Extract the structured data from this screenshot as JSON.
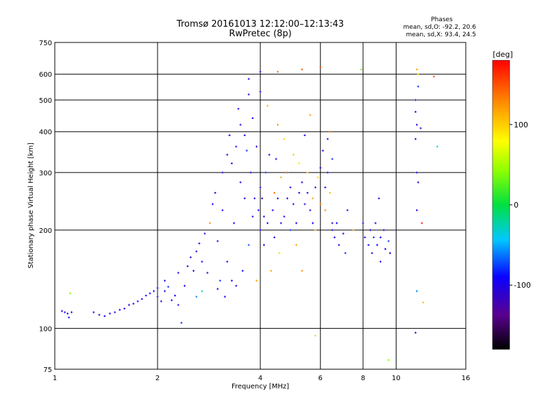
{
  "chart_data": {
    "type": "scatter",
    "title": "Tromsø 20161013 12:12:00–12:13:43",
    "subtitle": "RwPretec (8p)",
    "xlabel": "Frequency [MHz]",
    "ylabel": "Stationary phase Virtual Height [km]",
    "x_scale": "log",
    "y_scale": "log",
    "xlim": [
      1,
      16
    ],
    "ylim": [
      75,
      750
    ],
    "x_ticks": [
      "1",
      "2",
      "4",
      "6",
      "8",
      "10",
      "16"
    ],
    "x_tick_values": [
      1,
      2,
      4,
      6,
      8,
      10,
      16
    ],
    "y_ticks": [
      "75",
      "100",
      "200",
      "300",
      "400",
      "500",
      "600",
      "750"
    ],
    "y_tick_values": [
      75,
      100,
      200,
      300,
      400,
      500,
      600,
      750
    ],
    "grid": true,
    "info": {
      "heading": "Phases",
      "line_o": "mean, sd,O: -92.2, 20.6",
      "line_x": "mean, sd,X:  93.4, 24.5"
    },
    "colorbar": {
      "unit": "[deg]",
      "range": [
        -180,
        180
      ],
      "ticks": [
        "100",
        "0",
        "-100"
      ],
      "tick_values": [
        100,
        0,
        -100
      ],
      "colormap": "rainbow (black-purple-blue-cyan-green-yellow-orange-red)"
    },
    "points": [
      [
        1.05,
        113,
        -100
      ],
      [
        1.07,
        112,
        -100
      ],
      [
        1.09,
        111,
        -90
      ],
      [
        1.12,
        112,
        -100
      ],
      [
        1.1,
        108,
        -85
      ],
      [
        1.11,
        128,
        40
      ],
      [
        1.3,
        112,
        -100
      ],
      [
        1.35,
        110,
        -100
      ],
      [
        1.4,
        109,
        -95
      ],
      [
        1.45,
        111,
        -100
      ],
      [
        1.5,
        112,
        -100
      ],
      [
        1.55,
        114,
        -95
      ],
      [
        1.6,
        115,
        -100
      ],
      [
        1.65,
        118,
        -100
      ],
      [
        1.7,
        119,
        -100
      ],
      [
        1.75,
        121,
        -95
      ],
      [
        1.8,
        123,
        -100
      ],
      [
        1.85,
        126,
        -100
      ],
      [
        1.9,
        128,
        -90
      ],
      [
        1.95,
        130,
        -100
      ],
      [
        2.0,
        133,
        -100
      ],
      [
        2.0,
        125,
        -110
      ],
      [
        2.05,
        121,
        -100
      ],
      [
        2.1,
        130,
        -100
      ],
      [
        2.1,
        140,
        -95
      ],
      [
        2.15,
        134,
        -80
      ],
      [
        2.2,
        122,
        -100
      ],
      [
        2.25,
        126,
        -90
      ],
      [
        2.3,
        118,
        -100
      ],
      [
        2.3,
        148,
        -100
      ],
      [
        2.35,
        104,
        -80
      ],
      [
        2.4,
        135,
        -100
      ],
      [
        2.45,
        155,
        -100
      ],
      [
        2.5,
        165,
        -100
      ],
      [
        2.55,
        150,
        -90
      ],
      [
        2.6,
        125,
        -60
      ],
      [
        2.6,
        172,
        -100
      ],
      [
        2.65,
        182,
        -100
      ],
      [
        2.7,
        160,
        -95
      ],
      [
        2.7,
        130,
        -20
      ],
      [
        2.75,
        195,
        -100
      ],
      [
        2.8,
        148,
        -100
      ],
      [
        2.85,
        210,
        130
      ],
      [
        2.9,
        240,
        -90
      ],
      [
        2.95,
        260,
        -100
      ],
      [
        3.0,
        132,
        -100
      ],
      [
        3.0,
        185,
        -100
      ],
      [
        3.05,
        140,
        -80
      ],
      [
        3.1,
        300,
        -100
      ],
      [
        3.1,
        230,
        -90
      ],
      [
        3.15,
        125,
        -90
      ],
      [
        3.2,
        340,
        -100
      ],
      [
        3.2,
        160,
        -100
      ],
      [
        3.25,
        390,
        -95
      ],
      [
        3.3,
        320,
        -100
      ],
      [
        3.3,
        140,
        -100
      ],
      [
        3.35,
        210,
        -90
      ],
      [
        3.4,
        360,
        -100
      ],
      [
        3.4,
        135,
        -100
      ],
      [
        3.45,
        470,
        -95
      ],
      [
        3.5,
        420,
        -100
      ],
      [
        3.5,
        280,
        -100
      ],
      [
        3.55,
        150,
        -90
      ],
      [
        3.6,
        390,
        -100
      ],
      [
        3.6,
        250,
        -100
      ],
      [
        3.65,
        350,
        -80
      ],
      [
        3.7,
        520,
        -100
      ],
      [
        3.7,
        180,
        -70
      ],
      [
        3.75,
        300,
        -100
      ],
      [
        3.8,
        440,
        -90
      ],
      [
        3.8,
        220,
        -100
      ],
      [
        3.85,
        250,
        -100
      ],
      [
        3.9,
        360,
        -100
      ],
      [
        3.9,
        140,
        120
      ],
      [
        3.95,
        230,
        -100
      ],
      [
        4.0,
        270,
        -100
      ],
      [
        4.0,
        200,
        -90
      ],
      [
        4.0,
        530,
        -100
      ],
      [
        4.05,
        250,
        -100
      ],
      [
        4.1,
        220,
        -100
      ],
      [
        4.1,
        180,
        -95
      ],
      [
        4.15,
        300,
        -80
      ],
      [
        4.2,
        480,
        110
      ],
      [
        4.2,
        210,
        -100
      ],
      [
        4.25,
        340,
        -100
      ],
      [
        4.3,
        150,
        120
      ],
      [
        4.35,
        230,
        -90
      ],
      [
        4.4,
        260,
        140
      ],
      [
        4.4,
        190,
        -100
      ],
      [
        4.45,
        330,
        -100
      ],
      [
        4.5,
        420,
        130
      ],
      [
        4.5,
        250,
        -95
      ],
      [
        4.55,
        170,
        60
      ],
      [
        4.6,
        290,
        120
      ],
      [
        4.6,
        210,
        -100
      ],
      [
        4.7,
        380,
        100
      ],
      [
        4.7,
        220,
        -90
      ],
      [
        4.8,
        250,
        -100
      ],
      [
        4.8,
        300,
        150
      ],
      [
        4.9,
        270,
        -100
      ],
      [
        4.9,
        200,
        -80
      ],
      [
        5.0,
        340,
        110
      ],
      [
        5.0,
        240,
        -100
      ],
      [
        5.1,
        210,
        -100
      ],
      [
        5.1,
        180,
        120
      ],
      [
        5.2,
        260,
        -100
      ],
      [
        5.2,
        320,
        90
      ],
      [
        5.3,
        280,
        -90
      ],
      [
        5.3,
        150,
        130
      ],
      [
        5.4,
        240,
        -100
      ],
      [
        5.4,
        390,
        -100
      ],
      [
        5.5,
        300,
        100
      ],
      [
        5.5,
        260,
        -100
      ],
      [
        5.6,
        230,
        -100
      ],
      [
        5.6,
        450,
        130
      ],
      [
        5.7,
        250,
        120
      ],
      [
        5.7,
        210,
        -90
      ],
      [
        5.8,
        270,
        -100
      ],
      [
        5.8,
        200,
        110
      ],
      [
        5.9,
        290,
        100
      ],
      [
        6.0,
        310,
        -100
      ],
      [
        6.0,
        240,
        140
      ],
      [
        6.0,
        630,
        160
      ],
      [
        6.1,
        350,
        -100
      ],
      [
        6.2,
        270,
        -90
      ],
      [
        6.2,
        230,
        130
      ],
      [
        6.3,
        300,
        -100
      ],
      [
        6.3,
        380,
        -100
      ],
      [
        6.4,
        260,
        110
      ],
      [
        6.5,
        200,
        -100
      ],
      [
        6.5,
        330,
        -80
      ],
      [
        6.6,
        190,
        -100
      ],
      [
        6.7,
        210,
        -90
      ],
      [
        6.8,
        180,
        -100
      ],
      [
        7.0,
        195,
        -100
      ],
      [
        7.1,
        170,
        -80
      ],
      [
        7.2,
        230,
        -100
      ],
      [
        7.5,
        200,
        120
      ],
      [
        8.0,
        210,
        -100
      ],
      [
        8.1,
        190,
        -100
      ],
      [
        8.3,
        180,
        -90
      ],
      [
        8.4,
        200,
        -100
      ],
      [
        8.5,
        170,
        -100
      ],
      [
        8.6,
        190,
        -80
      ],
      [
        8.7,
        210,
        -100
      ],
      [
        8.8,
        180,
        -100
      ],
      [
        9.0,
        190,
        -90
      ],
      [
        9.0,
        160,
        -100
      ],
      [
        9.2,
        200,
        -100
      ],
      [
        9.3,
        175,
        -100
      ],
      [
        9.5,
        185,
        -80
      ],
      [
        9.6,
        170,
        -100
      ],
      [
        8.9,
        250,
        -100
      ],
      [
        7.9,
        620,
        40
      ],
      [
        9.5,
        80,
        40
      ],
      [
        5.8,
        95,
        50
      ],
      [
        11.4,
        500,
        -100
      ],
      [
        11.4,
        460,
        -90
      ],
      [
        11.5,
        420,
        -100
      ],
      [
        11.4,
        380,
        -100
      ],
      [
        11.5,
        300,
        -90
      ],
      [
        11.6,
        280,
        -100
      ],
      [
        11.5,
        230,
        -100
      ],
      [
        11.6,
        550,
        -80
      ],
      [
        11.5,
        620,
        120
      ],
      [
        11.6,
        600,
        100
      ],
      [
        11.8,
        410,
        -110
      ],
      [
        11.9,
        210,
        170
      ],
      [
        12.0,
        120,
        110
      ],
      [
        11.5,
        130,
        -60
      ],
      [
        11.4,
        97,
        -100
      ],
      [
        13.2,
        360,
        -40
      ],
      [
        12.9,
        590,
        150
      ],
      [
        5.3,
        620,
        150
      ],
      [
        4.5,
        610,
        140
      ],
      [
        3.7,
        580,
        -100
      ],
      [
        4.0,
        610,
        -100
      ],
      [
        6.4,
        400,
        140
      ],
      [
        6.5,
        210,
        -110
      ]
    ]
  }
}
